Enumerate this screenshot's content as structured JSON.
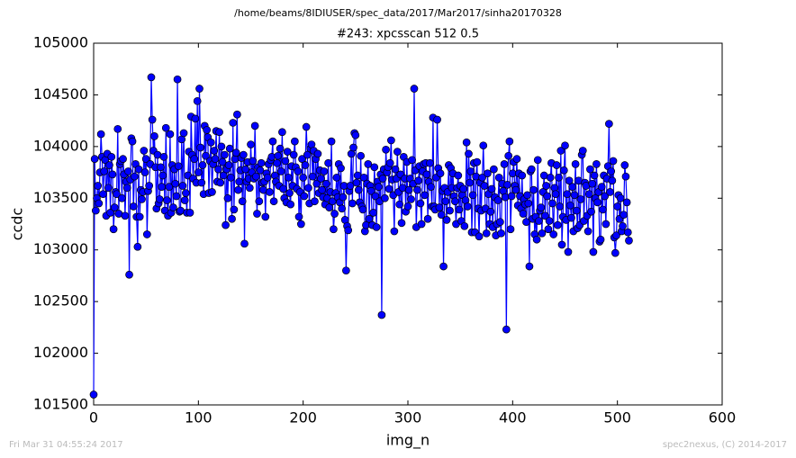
{
  "chart_data": {
    "type": "line",
    "suptitle": "/home/beams/8IDIUSER/spec_data/2017/Mar2017/sinha20170328",
    "title": "#243: xpcsscan 512 0.5",
    "xlabel": "img_n",
    "ylabel": "ccdc",
    "footer_left": "Fri Mar 31 04:55:24 2017",
    "footer_right": "spec2nexus, (C) 2014-2017",
    "color": "#0000ff",
    "marker": true,
    "xlim": [
      0,
      600
    ],
    "xticks": [
      0,
      100,
      200,
      300,
      400,
      500,
      600
    ],
    "ylim": [
      101500,
      105000
    ],
    "yticks": [
      101500,
      102000,
      102500,
      103000,
      103500,
      104000,
      104500,
      105000
    ],
    "x": [
      0,
      1,
      2,
      3,
      4,
      5,
      6,
      7,
      8,
      9,
      10,
      11,
      12,
      13,
      14,
      15,
      16,
      17,
      18,
      19,
      20,
      21,
      22,
      23,
      24,
      25,
      26,
      27,
      28,
      29,
      30,
      31,
      32,
      33,
      34,
      35,
      36,
      37,
      38,
      39,
      40,
      41,
      42,
      43,
      44,
      45,
      46,
      47,
      48,
      49,
      50,
      51,
      52,
      53,
      54,
      55,
      56,
      57,
      58,
      59,
      60,
      61,
      62,
      63,
      64,
      65,
      66,
      67,
      68,
      69,
      70,
      71,
      72,
      73,
      74,
      75,
      76,
      77,
      78,
      79,
      80,
      81,
      82,
      83,
      84,
      85,
      86,
      87,
      88,
      89,
      90,
      91,
      92,
      93,
      94,
      95,
      96,
      97,
      98,
      99,
      100,
      101,
      102,
      103,
      104,
      105,
      106,
      107,
      108,
      109,
      110,
      111,
      112,
      113,
      114,
      115,
      116,
      117,
      118,
      119,
      120,
      121,
      122,
      123,
      124,
      125,
      126,
      127,
      128,
      129,
      130,
      131,
      132,
      133,
      134,
      135,
      136,
      137,
      138,
      139,
      140,
      141,
      142,
      143,
      144,
      145,
      146,
      147,
      148,
      149,
      150,
      151,
      152,
      153,
      154,
      155,
      156,
      157,
      158,
      159,
      160,
      161,
      162,
      163,
      164,
      165,
      166,
      167,
      168,
      169,
      170,
      171,
      172,
      173,
      174,
      175,
      176,
      177,
      178,
      179,
      180,
      181,
      182,
      183,
      184,
      185,
      186,
      187,
      188,
      189,
      190,
      191,
      192,
      193,
      194,
      195,
      196,
      197,
      198,
      199,
      200,
      201,
      202,
      203,
      204,
      205,
      206,
      207,
      208,
      209,
      210,
      211,
      212,
      213,
      214,
      215,
      216,
      217,
      218,
      219,
      220,
      221,
      222,
      223,
      224,
      225,
      226,
      227,
      228,
      229,
      230,
      231,
      232,
      233,
      234,
      235,
      236,
      237,
      238,
      239,
      240,
      241,
      242,
      243,
      244,
      245,
      246,
      247,
      248,
      249,
      250,
      251,
      252,
      253,
      254,
      255,
      256,
      257,
      258,
      259,
      260,
      261,
      262,
      263,
      264,
      265,
      266,
      267,
      268,
      269,
      270,
      271,
      272,
      273,
      274,
      275,
      276,
      277,
      278,
      279,
      280,
      281,
      282,
      283,
      284,
      285,
      286,
      287,
      288,
      289,
      290,
      291,
      292,
      293,
      294,
      295,
      296,
      297,
      298,
      299,
      300,
      301,
      302,
      303,
      304,
      305,
      306,
      307,
      308,
      309,
      310,
      311,
      312,
      313,
      314,
      315,
      316,
      317,
      318,
      319,
      320,
      321,
      322,
      323,
      324,
      325,
      326,
      327,
      328,
      329,
      330,
      331,
      332,
      333,
      334,
      335,
      336,
      337,
      338,
      339,
      340,
      341,
      342,
      343,
      344,
      345,
      346,
      347,
      348,
      349,
      350,
      351,
      352,
      353,
      354,
      355,
      356,
      357,
      358,
      359,
      360,
      361,
      362,
      363,
      364,
      365,
      366,
      367,
      368,
      369,
      370,
      371,
      372,
      373,
      374,
      375,
      376,
      377,
      378,
      379,
      380,
      381,
      382,
      383,
      384,
      385,
      386,
      387,
      388,
      389,
      390,
      391,
      392,
      393,
      394,
      395,
      396,
      397,
      398,
      399,
      400,
      401,
      402,
      403,
      404,
      405,
      406,
      407,
      408,
      409,
      410,
      411,
      412,
      413,
      414,
      415,
      416,
      417,
      418,
      419,
      420,
      421,
      422,
      423,
      424,
      425,
      426,
      427,
      428,
      429,
      430,
      431,
      432,
      433,
      434,
      435,
      436,
      437,
      438,
      439,
      440,
      441,
      442,
      443,
      444,
      445,
      446,
      447,
      448,
      449,
      450,
      451,
      452,
      453,
      454,
      455,
      456,
      457,
      458,
      459,
      460,
      461,
      462,
      463,
      464,
      465,
      466,
      467,
      468,
      469,
      470,
      471,
      472,
      473,
      474,
      475,
      476,
      477,
      478,
      479,
      480,
      481,
      482,
      483,
      484,
      485,
      486,
      487,
      488,
      489,
      490,
      491,
      492,
      493,
      494,
      495,
      496,
      497,
      498,
      499,
      500,
      501,
      502,
      503,
      504,
      505,
      506,
      507,
      508,
      509,
      510,
      511
    ],
    "values": [
      101600,
      103880,
      103380,
      103500,
      103620,
      103450,
      103750,
      104120,
      103900,
      103540,
      103760,
      103870,
      103330,
      103930,
      103600,
      103820,
      103360,
      103900,
      103730,
      103200,
      103410,
      103560,
      103540,
      104170,
      103350,
      103830,
      103860,
      103500,
      103880,
      103730,
      103330,
      103660,
      103600,
      103760,
      102760,
      103680,
      104080,
      104050,
      103420,
      103710,
      103830,
      103320,
      103030,
      103780,
      103320,
      103580,
      103490,
      103560,
      103960,
      103750,
      103880,
      103150,
      103570,
      103620,
      103830,
      104670,
      104260,
      103960,
      104100,
      103800,
      103400,
      103920,
      103450,
      103490,
      103800,
      103610,
      103720,
      103900,
      103380,
      104180,
      103480,
      103330,
      103610,
      104120,
      103360,
      103820,
      103410,
      103780,
      103640,
      103520,
      104650,
      103810,
      103370,
      103380,
      104070,
      103620,
      104130,
      103480,
      103550,
      103360,
      103720,
      103950,
      103360,
      104290,
      103920,
      103690,
      103880,
      104270,
      103650,
      104440,
      103750,
      104560,
      103990,
      103650,
      103820,
      103540,
      104200,
      103910,
      104160,
      104090,
      103550,
      103860,
      104040,
      103560,
      103830,
      103960,
      103880,
      104150,
      103660,
      103780,
      104140,
      103650,
      104000,
      103850,
      103720,
      103920,
      103240,
      103780,
      103500,
      103820,
      103980,
      103700,
      103300,
      104230,
      103390,
      103880,
      103940,
      104310,
      103580,
      103660,
      103770,
      103890,
      103470,
      103920,
      103060,
      103780,
      103660,
      103850,
      103690,
      103600,
      104020,
      103750,
      103860,
      103690,
      104200,
      103710,
      103350,
      103800,
      103470,
      103770,
      103840,
      103650,
      103580,
      103660,
      103320,
      103740,
      103700,
      103830,
      103560,
      103870,
      103900,
      104050,
      103470,
      103720,
      103660,
      103840,
      103910,
      103620,
      103980,
      103760,
      104140,
      103590,
      103500,
      103860,
      103460,
      103950,
      103700,
      103550,
      103440,
      103810,
      103620,
      103920,
      104050,
      103800,
      103590,
      103760,
      103320,
      103560,
      103250,
      103880,
      103700,
      103520,
      103820,
      104190,
      103920,
      103600,
      103450,
      103980,
      104020,
      103710,
      103960,
      103470,
      103880,
      103640,
      103930,
      103550,
      103770,
      103690,
      103580,
      103510,
      103760,
      103440,
      103640,
      103500,
      103840,
      103410,
      103560,
      104050,
      103470,
      103200,
      103350,
      103550,
      103700,
      103510,
      103830,
      103460,
      103790,
      103400,
      103510,
      103620,
      103290,
      102800,
      103230,
      103190,
      103570,
      103620,
      103930,
      103450,
      103990,
      104130,
      104110,
      103650,
      103720,
      103580,
      103460,
      103910,
      103420,
      103390,
      103700,
      103180,
      103240,
      103640,
      103830,
      103300,
      103620,
      103570,
      103240,
      103360,
      103800,
      103520,
      103220,
      103660,
      103610,
      103470,
      103730,
      102370,
      103690,
      103780,
      103500,
      103970,
      103750,
      103800,
      103590,
      103840,
      104060,
      103680,
      103530,
      103180,
      103780,
      103690,
      103950,
      103560,
      103440,
      103730,
      103260,
      103600,
      103900,
      103690,
      103370,
      103850,
      103420,
      103580,
      103690,
      103490,
      103870,
      103640,
      104560,
      103770,
      103220,
      103580,
      103670,
      103810,
      103450,
      103250,
      103760,
      103830,
      103530,
      103840,
      103730,
      103300,
      103660,
      103840,
      103610,
      103420,
      104280,
      103420,
      103390,
      103700,
      104260,
      103790,
      103410,
      103740,
      103340,
      103570,
      102840,
      103600,
      103470,
      103290,
      103560,
      103820,
      103380,
      103790,
      103600,
      103740,
      103520,
      103470,
      103250,
      103600,
      103720,
      103390,
      103620,
      103280,
      103530,
      103590,
      103230,
      103480,
      104040,
      103420,
      103930,
      103650,
      103760,
      103170,
      103530,
      103840,
      103170,
      103710,
      103850,
      103400,
      103130,
      103650,
      103380,
      103700,
      104010,
      103620,
      103400,
      103160,
      103740,
      103540,
      103250,
      103370,
      103590,
      103220,
      103780,
      103510,
      103140,
      103250,
      103480,
      103700,
      103270,
      103160,
      103640,
      103570,
      103830,
      103510,
      102230,
      103630,
      103910,
      104050,
      103200,
      103520,
      103740,
      103850,
      103620,
      103580,
      103880,
      103430,
      103740,
      103520,
      103400,
      103720,
      103350,
      103490,
      103440,
      103270,
      103530,
      103450,
      102840,
      103760,
      103780,
      103300,
      103580,
      103150,
      103320,
      103100,
      103870,
      103280,
      103380,
      103410,
      103160,
      103560,
      103720,
      103330,
      103620,
      103520,
      103200,
      103280,
      103700,
      103840,
      103450,
      103150,
      103600,
      103540,
      103820,
      103240,
      103700,
      103420,
      103960,
      103050,
      103320,
      103770,
      104010,
      103290,
      103540,
      102980,
      103670,
      103430,
      103310,
      103610,
      103180,
      103530,
      103830,
      103380,
      103210,
      103670,
      103240,
      103490,
      103920,
      103960,
      103280,
      103650,
      103620,
      103330,
      103180,
      103540,
      103780,
      103370,
      103640,
      102980,
      103720,
      103500,
      103830,
      103460,
      103560,
      103080,
      103100,
      103610,
      103390,
      103720,
      103520,
      103250,
      103690,
      103810,
      104220,
      103560,
      103760,
      103670,
      103860,
      103120,
      102970,
      103140,
      103420,
      103530,
      103300,
      103500,
      103180,
      103230,
      103340,
      103820,
      103710,
      103460,
      103170,
      103090
    ]
  }
}
